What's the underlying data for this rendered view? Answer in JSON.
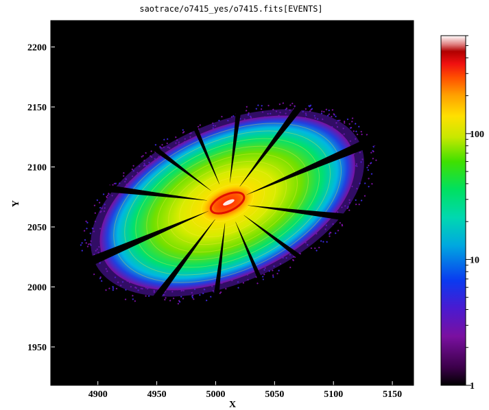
{
  "chart_data": {
    "type": "heatmap",
    "title": "saotrace/o7415_yes/o7415.fits[EVENTS]",
    "xlabel": "X",
    "ylabel": "Y",
    "xlim": [
      4860,
      5168
    ],
    "ylim": [
      1918,
      2222
    ],
    "x_ticks": [
      4900,
      4950,
      5000,
      5050,
      5100,
      5150
    ],
    "y_ticks": [
      1950,
      2000,
      2050,
      2100,
      2150,
      2200
    ],
    "colorbar": {
      "scale": "log",
      "range": [
        1,
        600
      ],
      "ticks": [
        {
          "value": 1,
          "label": "1"
        },
        {
          "value": 10,
          "label": "10"
        },
        {
          "value": 100,
          "label": "100"
        }
      ]
    },
    "source": {
      "center": [
        5010,
        2070
      ],
      "peak_counts": 400,
      "strut_count": 12
    }
  }
}
